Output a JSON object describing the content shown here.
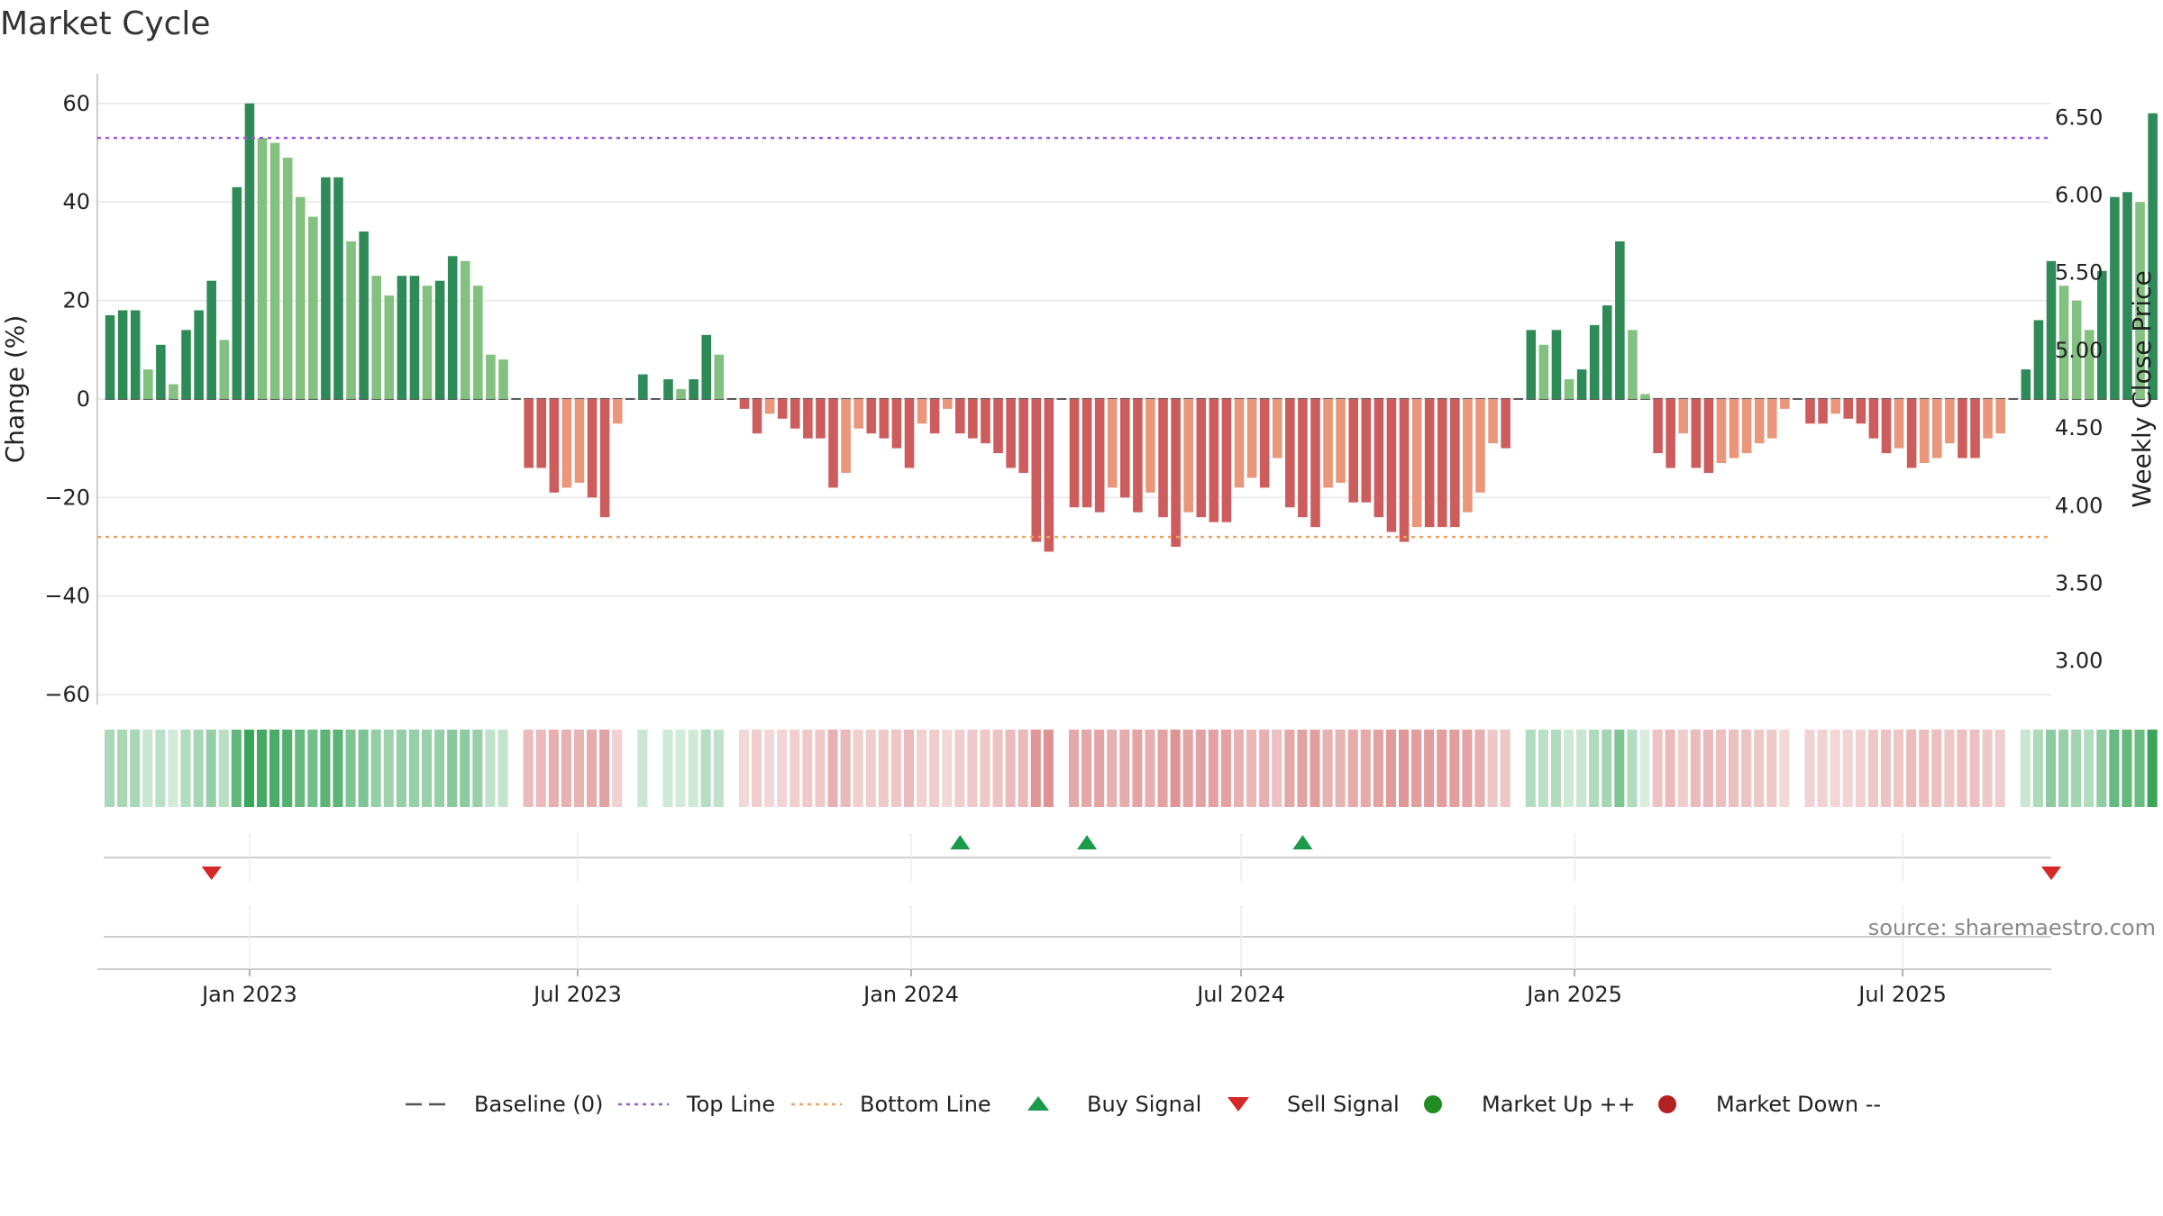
{
  "chart_data": {
    "type": "bar",
    "title": "Market Cycle",
    "ylabel_left": "Change (%)",
    "ylabel_right": "Weekly Close Price",
    "ylim_left": [
      -62,
      66
    ],
    "yticks_left": [
      60,
      40,
      20,
      0,
      -20,
      -40,
      -60
    ],
    "ytick_labels_left": [
      "60",
      "40",
      "20",
      "0",
      "−20",
      "−40",
      "−60"
    ],
    "yticks_right_labels": [
      "6.50",
      "6.00",
      "5.50",
      "5.00",
      "4.50",
      "4.00",
      "3.50",
      "3.00"
    ],
    "yticks_right_values": [
      6.5,
      6.0,
      5.5,
      5.0,
      4.5,
      4.0,
      3.5,
      3.0
    ],
    "ylim_right": [
      2.72,
      6.78
    ],
    "top_line": 53,
    "bottom_line": -28,
    "x_start": "2022-10-09",
    "x_end": "2025-09-21",
    "x_ticks": [
      "2023-01-01",
      "2023-07-01",
      "2024-01-01",
      "2024-07-01",
      "2025-01-01",
      "2025-07-01"
    ],
    "x_tick_labels": [
      "Jan 2023",
      "Jul 2023",
      "Jan 2024",
      "Jul 2024",
      "Jan 2025",
      "Jul 2025"
    ],
    "bar_dates_start": "2022-10-16",
    "bar_interval_days": 7,
    "bar_values": [
      17,
      18,
      18,
      6,
      11,
      3,
      14,
      18,
      24,
      12,
      43,
      60,
      53,
      52,
      49,
      41,
      37,
      45,
      45,
      32,
      34,
      25,
      21,
      25,
      25,
      23,
      24,
      29,
      28,
      23,
      9,
      8,
      0,
      -14,
      -14,
      -19,
      -18,
      -17,
      -20,
      -24,
      -5,
      0,
      5,
      0,
      4,
      2,
      4,
      13,
      9,
      0,
      -2,
      -7,
      -3,
      -4,
      -6,
      -8,
      -8,
      -18,
      -15,
      -6,
      -7,
      -8,
      -10,
      -14,
      -5,
      -7,
      -2,
      -7,
      -8,
      -9,
      -11,
      -14,
      -15,
      -29,
      -31,
      0,
      -22,
      -22,
      -23,
      -18,
      -20,
      -23,
      -19,
      -24,
      -30,
      -23,
      -24,
      -25,
      -25,
      -18,
      -16,
      -18,
      -12,
      -22,
      -24,
      -26,
      -18,
      -17,
      -21,
      -21,
      -24,
      -27,
      -29,
      -26,
      -26,
      -26,
      -26,
      -23,
      -19,
      -9,
      -10,
      0,
      14,
      11,
      14,
      4,
      6,
      15,
      19,
      32,
      14,
      1,
      -11,
      -14,
      -7,
      -14,
      -15,
      -13,
      -12,
      -11,
      -9,
      -8,
      -2,
      0,
      -5,
      -5,
      -3,
      -4,
      -5,
      -8,
      -11,
      -10,
      -14,
      -13,
      -12,
      -9,
      -12,
      -12,
      -8,
      -7,
      0,
      6,
      16,
      28,
      23,
      20,
      14,
      26,
      41,
      42,
      40,
      58
    ],
    "colors": {
      "strong_up": "#2e8b57",
      "weak_up": "#82c17f",
      "strong_down": "#cd5c5c",
      "weak_down": "#e9967a",
      "top_line": "#9b59d0",
      "bottom_line": "#f0a060",
      "baseline": "#555555",
      "buy": "#1a9a4a",
      "sell": "#d62728",
      "market_up": "#228b22",
      "market_down": "#b22222",
      "grid": "#e6e6e6"
    },
    "buy_signals": [
      "2024-01-28",
      "2024-04-07",
      "2024-08-04"
    ],
    "sell_signals": [
      "2022-12-11",
      "2025-09-21"
    ],
    "source_text": "source: sharemaestro.com",
    "legend": [
      {
        "label": "Baseline (0)",
        "marker": "dash",
        "color": "#555555"
      },
      {
        "label": "Top Line",
        "marker": "dotted",
        "color": "#9b59d0"
      },
      {
        "label": "Bottom Line",
        "marker": "dotted",
        "color": "#f0a060"
      },
      {
        "label": "Buy Signal",
        "marker": "triangle-up",
        "color": "#1a9a4a"
      },
      {
        "label": "Sell Signal",
        "marker": "triangle-down",
        "color": "#d62728"
      },
      {
        "label": "Market Up ++",
        "marker": "circle",
        "color": "#228b22"
      },
      {
        "label": "Market Down --",
        "marker": "circle",
        "color": "#b22222"
      }
    ]
  }
}
